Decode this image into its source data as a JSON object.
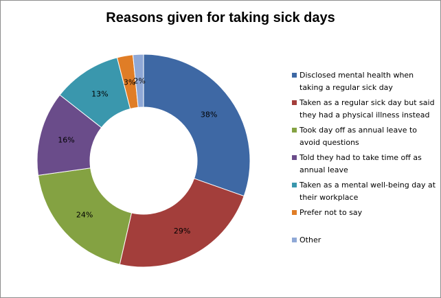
{
  "chart_data": {
    "type": "pie",
    "donut": true,
    "title": "Reasons given for taking sick days",
    "legend_position": "right",
    "slices": [
      {
        "label": "Disclosed mental health when taking a regular sick day",
        "value": 38,
        "display": "38%",
        "color": "#3e68a4"
      },
      {
        "label": "Taken as a regular sick day but said they had a physical illness instead",
        "value": 29,
        "display": "29%",
        "color": "#a33e3b"
      },
      {
        "label": "Took day off as annual leave to avoid questions",
        "value": 24,
        "display": "24%",
        "color": "#84a242"
      },
      {
        "label": "Told they had to take time off as annual leave",
        "value": 16,
        "display": "16%",
        "color": "#6a4c8a"
      },
      {
        "label": "Taken as a mental well-being day at their workplace",
        "value": 13,
        "display": "13%",
        "color": "#3a97ad"
      },
      {
        "label": "Prefer not to say",
        "value": 3,
        "display": "3%",
        "color": "#e07d26"
      },
      {
        "label": "Other",
        "value": 2,
        "display": "2%",
        "color": "#8fa8d6"
      }
    ]
  }
}
